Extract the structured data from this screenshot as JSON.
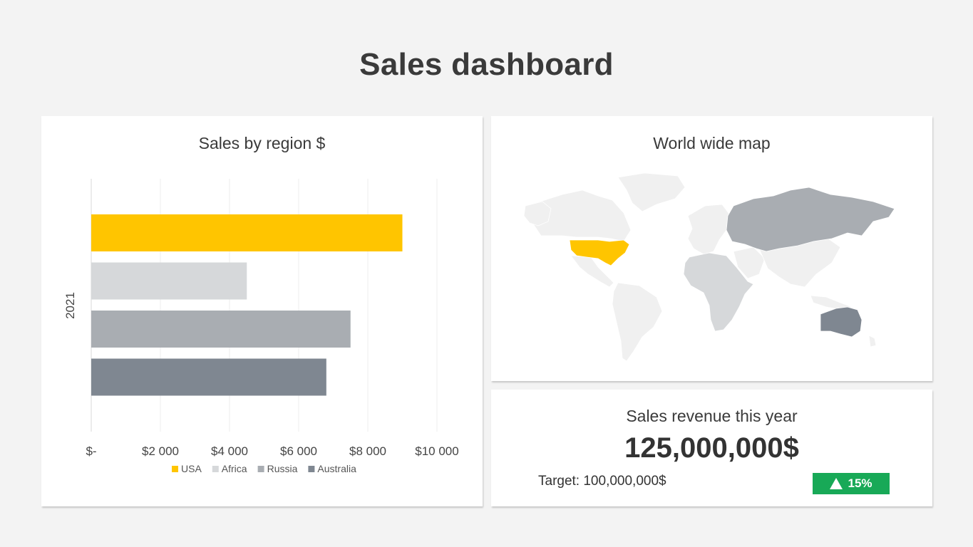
{
  "page_title": "Sales dashboard",
  "chart_card": {
    "title": "Sales by region $"
  },
  "map_card": {
    "title": "World wide map",
    "region_colors": {
      "usa": "#ffc500",
      "africa": "#d6d8da",
      "russia": "#a9adb2",
      "australia": "#7f8791",
      "other": "#f0f0f0"
    }
  },
  "revenue_card": {
    "title": "Sales revenue this year",
    "value": "125,000,000$",
    "target": "Target: 100,000,000$",
    "change": "15%",
    "change_icon": "triangle-up-icon",
    "badge_color": "#18a957"
  },
  "chart_data": {
    "type": "bar",
    "orientation": "horizontal",
    "categories": [
      "2021"
    ],
    "series": [
      {
        "name": "USA",
        "values": [
          9000
        ],
        "color": "#ffc500"
      },
      {
        "name": "Africa",
        "values": [
          4500
        ],
        "color": "#d6d8da"
      },
      {
        "name": "Russia",
        "values": [
          7500
        ],
        "color": "#a9adb2"
      },
      {
        "name": "Australia",
        "values": [
          6800
        ],
        "color": "#7f8791"
      }
    ],
    "xlim": [
      0,
      10000
    ],
    "x_ticks": [
      0,
      2000,
      4000,
      6000,
      8000,
      10000
    ],
    "x_tick_labels": [
      "$-",
      "$2 000",
      "$4 000",
      "$6 000",
      "$8 000",
      "$10 000"
    ],
    "title": "Sales by region $",
    "xlabel": "",
    "ylabel": "",
    "grid": true,
    "legend": "bottom"
  }
}
